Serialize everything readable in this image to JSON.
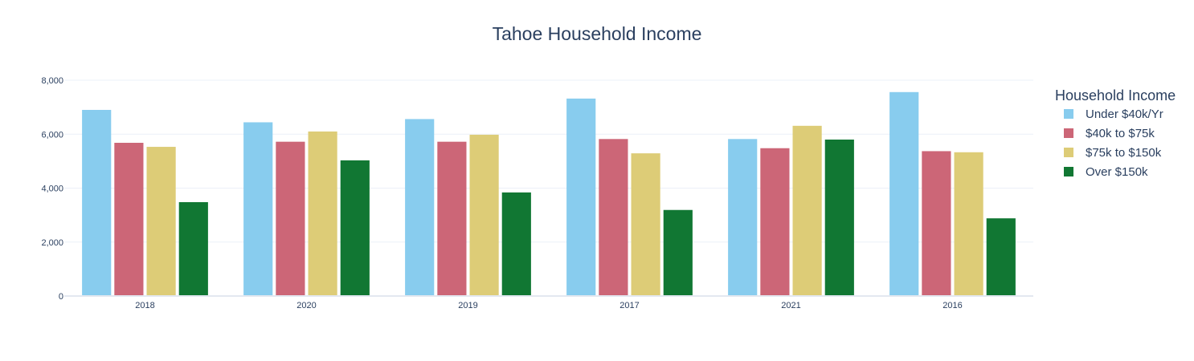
{
  "chart_data": {
    "type": "bar",
    "title": "Tahoe Household Income",
    "xlabel": "",
    "ylabel": "",
    "categories": [
      "2018",
      "2020",
      "2019",
      "2017",
      "2021",
      "2016"
    ],
    "ylim": [
      0,
      8000
    ],
    "yticks": [
      0,
      2000,
      4000,
      6000,
      8000
    ],
    "ytick_labels": [
      "0",
      "2,000",
      "4,000",
      "6,000",
      "8,000"
    ],
    "grid": true,
    "legend": {
      "title": "Household Income",
      "placement": "right"
    },
    "series": [
      {
        "name": "Under $40k/Yr",
        "color": "#88ccee",
        "values": [
          6900,
          6440,
          6560,
          7320,
          5820,
          7560
        ]
      },
      {
        "name": "$40k to $75k",
        "color": "#cc6677",
        "values": [
          5680,
          5720,
          5720,
          5820,
          5480,
          5370
        ]
      },
      {
        "name": "$75k to $150k",
        "color": "#ddcc77",
        "values": [
          5530,
          6100,
          5980,
          5290,
          6310,
          5330
        ]
      },
      {
        "name": "Over $150k",
        "color": "#117733",
        "values": [
          3480,
          5030,
          3840,
          3190,
          5800,
          2880
        ]
      }
    ]
  }
}
